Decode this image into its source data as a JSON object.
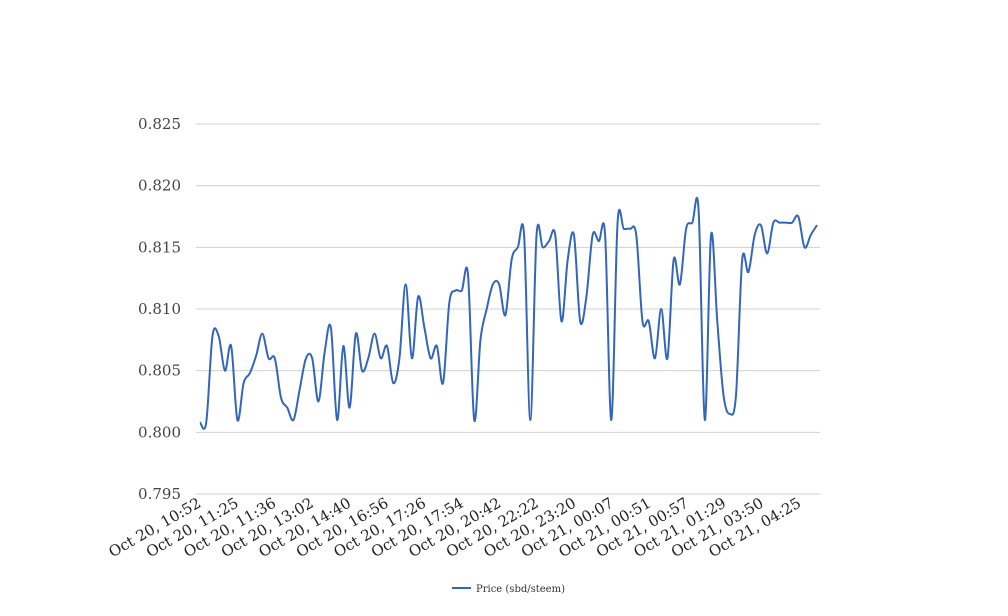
{
  "chart_data": {
    "type": "line",
    "title": "",
    "xlabel": "",
    "ylabel": "",
    "ylim": [
      0.795,
      0.825
    ],
    "yticks": [
      "0.795",
      "0.800",
      "0.805",
      "0.810",
      "0.815",
      "0.820",
      "0.825"
    ],
    "grid": true,
    "legend_position": "bottom",
    "x_tick_labels": [
      "Oct 20, 10:52",
      "Oct 20, 11:25",
      "Oct 20, 11:36",
      "Oct 20, 13:02",
      "Oct 20, 14:40",
      "Oct 20, 16:56",
      "Oct 20, 17:26",
      "Oct 20, 17:54",
      "Oct 20, 20:42",
      "Oct 20, 22:22",
      "Oct 20, 23:20",
      "Oct 21, 00:07",
      "Oct 21, 00:51",
      "Oct 21, 00:57",
      "Oct 21, 01:29",
      "Oct 21, 03:50",
      "Oct 21, 04:25"
    ],
    "series": [
      {
        "name": "Price (sbd/steem)",
        "color": "#3366bb",
        "values": [
          0.8008,
          0.8008,
          0.8078,
          0.8078,
          0.805,
          0.807,
          0.801,
          0.804,
          0.8048,
          0.8062,
          0.808,
          0.806,
          0.806,
          0.8028,
          0.802,
          0.801,
          0.8035,
          0.806,
          0.806,
          0.8025,
          0.8065,
          0.8085,
          0.801,
          0.807,
          0.802,
          0.808,
          0.805,
          0.806,
          0.808,
          0.806,
          0.807,
          0.804,
          0.806,
          0.812,
          0.806,
          0.811,
          0.8085,
          0.806,
          0.807,
          0.804,
          0.8105,
          0.8115,
          0.8115,
          0.8128,
          0.801,
          0.8075,
          0.81,
          0.812,
          0.812,
          0.8095,
          0.814,
          0.815,
          0.816,
          0.801,
          0.816,
          0.815,
          0.8155,
          0.816,
          0.809,
          0.814,
          0.816,
          0.809,
          0.811,
          0.816,
          0.8155,
          0.816,
          0.801,
          0.817,
          0.8165,
          0.8165,
          0.816,
          0.809,
          0.809,
          0.806,
          0.81,
          0.806,
          0.814,
          0.812,
          0.8165,
          0.817,
          0.818,
          0.801,
          0.816,
          0.809,
          0.803,
          0.8015,
          0.803,
          0.814,
          0.813,
          0.816,
          0.8168,
          0.8145,
          0.817,
          0.817,
          0.817,
          0.817,
          0.8175,
          0.815,
          0.816,
          0.8168
        ]
      }
    ]
  }
}
